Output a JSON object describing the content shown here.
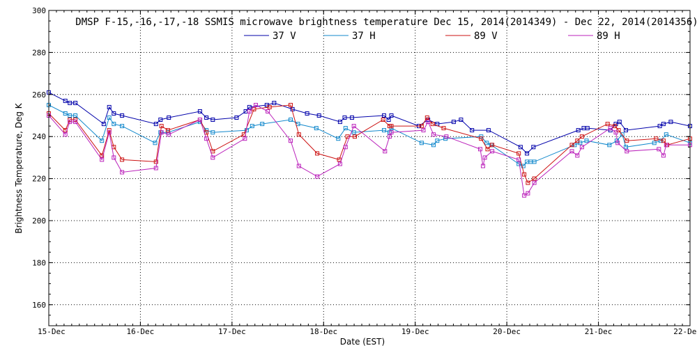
{
  "chart_data": {
    "type": "line",
    "title": "DMSP F-15,-16,-17,-18 SSMIS microwave brightness temperature Dec 15, 2014(2014349) - Dec 22, 2014(2014356)",
    "xlabel": "Date (EST)",
    "ylabel": "Brightness Temperature, Deg K",
    "xlim": [
      0,
      7
    ],
    "ylim": [
      150,
      300
    ],
    "yticks": [
      160,
      180,
      200,
      220,
      240,
      260,
      280,
      300
    ],
    "xticks": [
      0,
      1,
      2,
      3,
      4,
      5,
      6,
      7
    ],
    "xtick_labels": [
      "15-Dec",
      "16-Dec",
      "17-Dec",
      "18-Dec",
      "19-Dec",
      "20-Dec",
      "21-Dec",
      "22-Dec"
    ],
    "grid": true,
    "legend_position": "top-center",
    "series": [
      {
        "name": "37 V",
        "color": "#0000aa",
        "x": [
          0.0,
          0.18,
          0.23,
          0.29,
          0.6,
          0.66,
          0.71,
          0.8,
          1.17,
          1.22,
          1.31,
          1.65,
          1.72,
          1.79,
          2.05,
          2.15,
          2.19,
          2.38,
          2.46,
          2.66,
          2.82,
          2.95,
          3.18,
          3.23,
          3.31,
          3.66,
          3.71,
          3.74,
          4.04,
          4.14,
          4.24,
          4.42,
          4.5,
          4.62,
          4.8,
          5.15,
          5.22,
          5.29,
          5.78,
          5.84,
          5.88,
          6.13,
          6.19,
          6.23,
          6.3,
          6.67,
          6.71,
          6.79,
          7.0
        ],
        "values": [
          261,
          257,
          256,
          256,
          246,
          254,
          251,
          250,
          246,
          248,
          249,
          252,
          249,
          248,
          249,
          252,
          254,
          255,
          256,
          253,
          251,
          250,
          247,
          249,
          249,
          250,
          248,
          250,
          245,
          248,
          246,
          247,
          248,
          243,
          243,
          235,
          232,
          235,
          243,
          244,
          244,
          243,
          246,
          247,
          243,
          245,
          246,
          247,
          245
        ]
      },
      {
        "name": "37 H",
        "color": "#1188cc",
        "x": [
          0.0,
          0.18,
          0.23,
          0.29,
          0.58,
          0.66,
          0.71,
          0.8,
          1.16,
          1.22,
          1.3,
          1.65,
          1.72,
          1.79,
          2.16,
          2.22,
          2.33,
          2.64,
          2.72,
          2.92,
          3.16,
          3.24,
          3.33,
          3.66,
          3.72,
          3.74,
          4.07,
          4.2,
          4.24,
          4.33,
          4.72,
          4.78,
          4.83,
          5.13,
          5.18,
          5.22,
          5.26,
          5.3,
          5.74,
          5.8,
          5.87,
          6.12,
          6.2,
          6.26,
          6.3,
          6.61,
          6.68,
          6.74,
          7.0
        ],
        "values": [
          255,
          251,
          250,
          250,
          238,
          249,
          246,
          245,
          237,
          242,
          242,
          247,
          243,
          242,
          243,
          245,
          246,
          248,
          246,
          244,
          239,
          244,
          242,
          243,
          242,
          244,
          237,
          236,
          238,
          239,
          240,
          237,
          236,
          227,
          226,
          228,
          228,
          228,
          236,
          237,
          238,
          236,
          238,
          241,
          235,
          237,
          238,
          241,
          237
        ]
      },
      {
        "name": "89 V",
        "color": "#cc1111",
        "x": [
          0.0,
          0.18,
          0.23,
          0.29,
          0.58,
          0.66,
          0.71,
          0.8,
          1.17,
          1.23,
          1.3,
          1.65,
          1.72,
          1.79,
          2.13,
          2.24,
          2.41,
          2.64,
          2.73,
          2.93,
          3.17,
          3.26,
          3.34,
          3.65,
          3.72,
          3.74,
          4.07,
          4.13,
          4.19,
          4.31,
          4.72,
          4.79,
          4.84,
          5.13,
          5.19,
          5.23,
          5.3,
          5.71,
          5.77,
          5.82,
          6.1,
          6.18,
          6.22,
          6.31,
          6.63,
          6.71,
          6.75,
          7.0
        ],
        "values": [
          251,
          243,
          248,
          248,
          231,
          243,
          235,
          229,
          228,
          245,
          243,
          248,
          242,
          233,
          241,
          253,
          254,
          255,
          241,
          232,
          229,
          240,
          240,
          248,
          245,
          245,
          245,
          249,
          246,
          244,
          239,
          234,
          236,
          232,
          222,
          218,
          220,
          236,
          238,
          240,
          246,
          245,
          243,
          238,
          239,
          238,
          236,
          239
        ]
      },
      {
        "name": "89 H",
        "color": "#bb22bb",
        "x": [
          0.0,
          0.18,
          0.23,
          0.29,
          0.58,
          0.66,
          0.71,
          0.8,
          1.17,
          1.23,
          1.31,
          1.65,
          1.72,
          1.79,
          2.14,
          2.19,
          2.26,
          2.39,
          2.64,
          2.73,
          2.93,
          3.18,
          3.24,
          3.33,
          3.67,
          3.72,
          3.74,
          4.09,
          4.14,
          4.2,
          4.34,
          4.71,
          4.74,
          4.76,
          4.84,
          5.13,
          5.19,
          5.23,
          5.3,
          5.71,
          5.77,
          5.82,
          6.13,
          6.19,
          6.21,
          6.31,
          6.66,
          6.71,
          6.74,
          7.0
        ],
        "values": [
          250,
          241,
          247,
          247,
          229,
          242,
          230,
          223,
          225,
          242,
          241,
          248,
          239,
          230,
          239,
          252,
          255,
          252,
          238,
          226,
          221,
          227,
          235,
          245,
          233,
          240,
          242,
          243,
          247,
          241,
          240,
          234,
          226,
          230,
          233,
          229,
          212,
          213,
          218,
          233,
          231,
          235,
          244,
          242,
          237,
          233,
          234,
          231,
          236,
          236
        ]
      }
    ]
  }
}
